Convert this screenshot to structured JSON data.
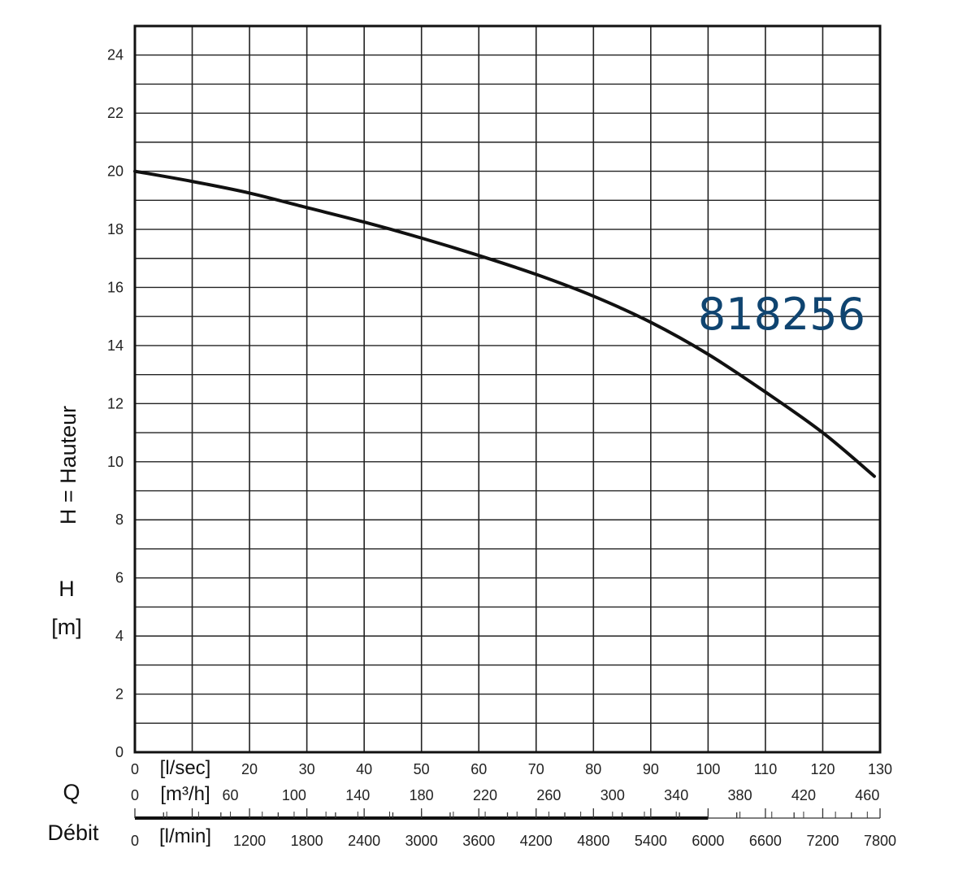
{
  "chart_data": {
    "type": "line",
    "model_label": "818256",
    "colors": {
      "curve": "#111111",
      "grid": "#222222",
      "model_label": "#0f4470"
    },
    "grid": true,
    "y_axis": {
      "title": "H = Hauteur",
      "symbol": "H",
      "unit": "[m]",
      "range": [
        0,
        25
      ],
      "ticks": [
        "0",
        "2",
        "4",
        "6",
        "8",
        "10",
        "12",
        "14",
        "16",
        "18",
        "20",
        "22",
        "24"
      ]
    },
    "x_axis": {
      "title_symbol": "Q",
      "title_word": "Débit",
      "range_l_sec": [
        0,
        130
      ],
      "scales": [
        {
          "unit": "[l/sec]",
          "zero": "0",
          "ticks": [
            {
              "v": 20,
              "label": "20"
            },
            {
              "v": 30,
              "label": "30"
            },
            {
              "v": 40,
              "label": "40"
            },
            {
              "v": 50,
              "label": "50"
            },
            {
              "v": 60,
              "label": "60"
            },
            {
              "v": 70,
              "label": "70"
            },
            {
              "v": 80,
              "label": "80"
            },
            {
              "v": 90,
              "label": "90"
            },
            {
              "v": 100,
              "label": "100"
            },
            {
              "v": 110,
              "label": "110"
            },
            {
              "v": 120,
              "label": "120"
            },
            {
              "v": 130,
              "label": "130"
            }
          ]
        },
        {
          "unit": "[m³/h]",
          "zero": "0",
          "ticks": [
            {
              "v": 60,
              "label": "60"
            },
            {
              "v": 100,
              "label": "100"
            },
            {
              "v": 140,
              "label": "140"
            },
            {
              "v": 180,
              "label": "180"
            },
            {
              "v": 220,
              "label": "220"
            },
            {
              "v": 260,
              "label": "260"
            },
            {
              "v": 300,
              "label": "300"
            },
            {
              "v": 340,
              "label": "340"
            },
            {
              "v": 380,
              "label": "380"
            },
            {
              "v": 420,
              "label": "420"
            },
            {
              "v": 460,
              "label": "460"
            }
          ]
        },
        {
          "unit": "[l/min]",
          "zero": "0",
          "ticks": [
            {
              "v": 1200,
              "label": "1200"
            },
            {
              "v": 1800,
              "label": "1800"
            },
            {
              "v": 2400,
              "label": "2400"
            },
            {
              "v": 3000,
              "label": "3000"
            },
            {
              "v": 3600,
              "label": "3600"
            },
            {
              "v": 4200,
              "label": "4200"
            },
            {
              "v": 4800,
              "label": "4800"
            },
            {
              "v": 5400,
              "label": "5400"
            },
            {
              "v": 6000,
              "label": "6000"
            },
            {
              "v": 6600,
              "label": "6600"
            },
            {
              "v": 7200,
              "label": "7200"
            },
            {
              "v": 7800,
              "label": "7800"
            }
          ]
        }
      ],
      "highlighted_l_min_range": [
        0,
        6000
      ]
    },
    "series": [
      {
        "x_l_sec": [
          0,
          10,
          20,
          30,
          40,
          50,
          60,
          70,
          80,
          90,
          100,
          110,
          120,
          129
        ],
        "y_m": [
          20.0,
          19.65,
          19.25,
          18.75,
          18.25,
          17.7,
          17.1,
          16.45,
          15.7,
          14.8,
          13.7,
          12.4,
          11.0,
          9.5
        ]
      }
    ]
  }
}
